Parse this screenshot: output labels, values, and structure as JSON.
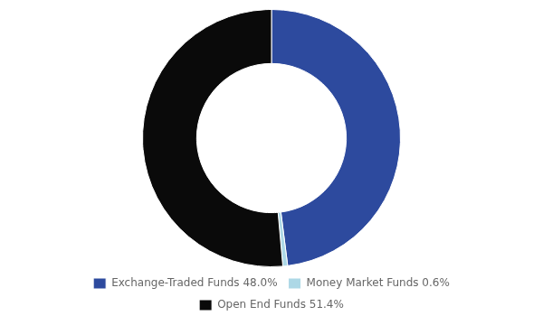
{
  "chart_data": {
    "type": "doughnut",
    "categories": [
      "Exchange-Traded Funds 48.0%",
      "Money Market Funds 0.6%",
      "Open End Funds 51.4%"
    ],
    "values": [
      48.0,
      0.6,
      51.4
    ],
    "colors": [
      "#2d4a9e",
      "#add8e6",
      "#0a0a0a"
    ],
    "legend": "bottom"
  }
}
